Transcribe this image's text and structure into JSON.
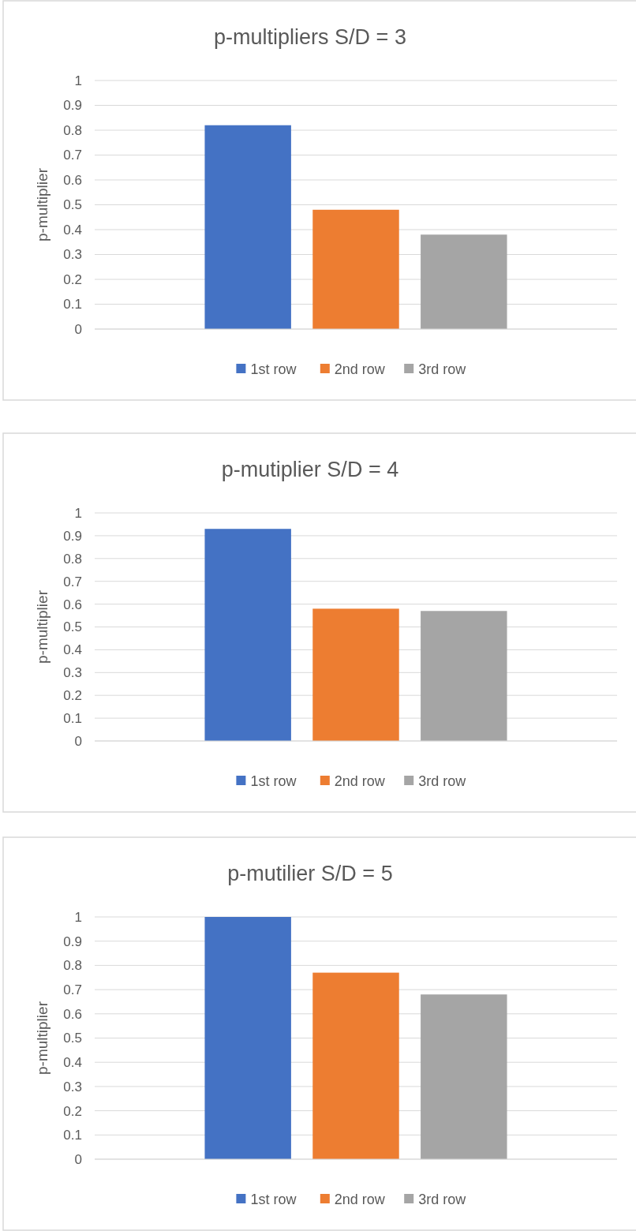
{
  "chart_data": [
    {
      "type": "bar",
      "title": "p-multipliers S/D = 3",
      "ylabel": "p-multiplier",
      "categories": [
        null
      ],
      "series": [
        {
          "name": "1st row",
          "color": "#4472c4",
          "values": [
            0.82
          ]
        },
        {
          "name": "2nd row",
          "color": "#ed7d31",
          "values": [
            0.48
          ]
        },
        {
          "name": "3rd row",
          "color": "#a5a5a5",
          "values": [
            0.38
          ]
        }
      ],
      "ylim": [
        0,
        1
      ],
      "yticks": [
        0,
        0.1,
        0.2,
        0.3,
        0.4,
        0.5,
        0.6,
        0.7,
        0.8,
        0.9,
        1
      ],
      "grid": "y",
      "legend": "bottom"
    },
    {
      "type": "bar",
      "title": "p-mutiplier S/D = 4",
      "ylabel": "p-multiplier",
      "categories": [
        null
      ],
      "series": [
        {
          "name": "1st row",
          "color": "#4472c4",
          "values": [
            0.93
          ]
        },
        {
          "name": "2nd row",
          "color": "#ed7d31",
          "values": [
            0.58
          ]
        },
        {
          "name": "3rd row",
          "color": "#a5a5a5",
          "values": [
            0.57
          ]
        }
      ],
      "ylim": [
        0,
        1
      ],
      "yticks": [
        0,
        0.1,
        0.2,
        0.3,
        0.4,
        0.5,
        0.6,
        0.7,
        0.8,
        0.9,
        1
      ],
      "grid": "y",
      "legend": "bottom"
    },
    {
      "type": "bar",
      "title": "p-mutilier S/D = 5",
      "ylabel": "p-multiplier",
      "categories": [
        null
      ],
      "series": [
        {
          "name": "1st row",
          "color": "#4472c4",
          "values": [
            1.0
          ]
        },
        {
          "name": "2nd row",
          "color": "#ed7d31",
          "values": [
            0.77
          ]
        },
        {
          "name": "3rd row",
          "color": "#a5a5a5",
          "values": [
            0.68
          ]
        }
      ],
      "ylim": [
        0,
        1
      ],
      "yticks": [
        0,
        0.1,
        0.2,
        0.3,
        0.4,
        0.5,
        0.6,
        0.7,
        0.8,
        0.9,
        1
      ],
      "grid": "y",
      "legend": "bottom"
    }
  ]
}
